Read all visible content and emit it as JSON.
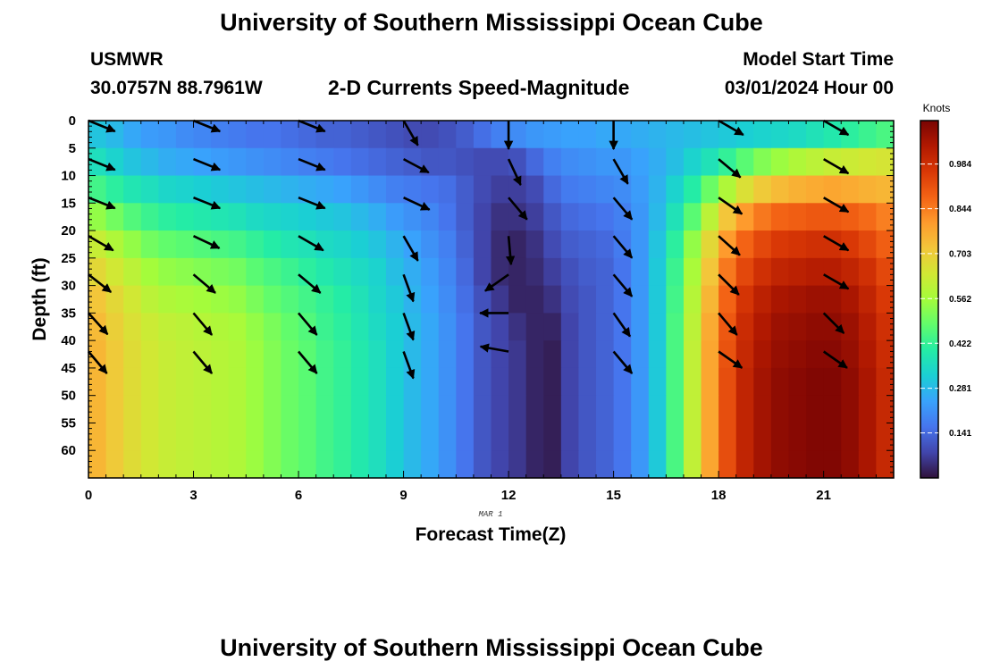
{
  "header": {
    "title_top": "University of Southern Mississippi Ocean Cube",
    "title_bottom": "University of Southern Mississippi Ocean Cube",
    "station": "USMWR",
    "location": "30.0757N  88.7961W",
    "product": "2-D Currents Speed-Magnitude",
    "model_start_label": "Model Start Time",
    "model_start_value": "03/01/2024 Hour 00"
  },
  "chart_data": {
    "type": "heatmap",
    "xlabel": "Forecast Time(Z)",
    "ylabel": "Depth (ft)",
    "date_label": "MAR 1",
    "colorbar_units": "Knots",
    "xlim": [
      0,
      23
    ],
    "ylim": [
      0,
      65
    ],
    "x_ticks": [
      0,
      3,
      6,
      9,
      12,
      15,
      18,
      21
    ],
    "y_ticks": [
      0,
      5,
      10,
      15,
      20,
      25,
      30,
      35,
      40,
      45,
      50,
      55,
      60
    ],
    "colorbar_ticks": [
      0.141,
      0.281,
      0.422,
      0.562,
      0.703,
      0.844,
      0.984
    ],
    "colorbar_range": [
      0.0,
      1.12
    ],
    "colormap": [
      "#30123b",
      "#4145ab",
      "#4675ed",
      "#39a2fc",
      "#1bcfd4",
      "#24eca6",
      "#61fc6c",
      "#a4fc3b",
      "#d1e834",
      "#f3c63a",
      "#fe9b2d",
      "#f36315",
      "#d93806",
      "#b11901",
      "#7a0403"
    ],
    "x": [
      0,
      0.5,
      1,
      1.5,
      2,
      2.5,
      3,
      3.5,
      4,
      4.5,
      5,
      5.5,
      6,
      6.5,
      7,
      7.5,
      8,
      8.5,
      9,
      9.5,
      10,
      10.5,
      11,
      11.5,
      12,
      12.5,
      13,
      13.5,
      14,
      14.5,
      15,
      15.5,
      16,
      16.5,
      17,
      17.5,
      18,
      18.5,
      19,
      19.5,
      20,
      20.5,
      21,
      21.5,
      22,
      22.5
    ],
    "y": [
      0,
      5,
      10,
      15,
      20,
      25,
      30,
      35,
      40,
      45,
      50,
      55,
      60
    ],
    "z": [
      [
        0.3,
        0.28,
        0.25,
        0.23,
        0.22,
        0.2,
        0.19,
        0.18,
        0.17,
        0.16,
        0.16,
        0.15,
        0.14,
        0.13,
        0.13,
        0.12,
        0.11,
        0.1,
        0.09,
        0.09,
        0.1,
        0.12,
        0.15,
        0.18,
        0.2,
        0.22,
        0.23,
        0.24,
        0.24,
        0.25,
        0.25,
        0.26,
        0.27,
        0.28,
        0.29,
        0.3,
        0.31,
        0.32,
        0.33,
        0.34,
        0.35,
        0.37,
        0.39,
        0.41,
        0.43,
        0.45
      ],
      [
        0.36,
        0.33,
        0.3,
        0.28,
        0.26,
        0.25,
        0.24,
        0.23,
        0.22,
        0.21,
        0.2,
        0.19,
        0.18,
        0.17,
        0.16,
        0.15,
        0.14,
        0.13,
        0.12,
        0.11,
        0.11,
        0.1,
        0.09,
        0.09,
        0.1,
        0.14,
        0.18,
        0.2,
        0.21,
        0.22,
        0.22,
        0.24,
        0.26,
        0.29,
        0.33,
        0.37,
        0.42,
        0.47,
        0.52,
        0.55,
        0.58,
        0.6,
        0.62,
        0.63,
        0.64,
        0.65
      ],
      [
        0.44,
        0.41,
        0.38,
        0.36,
        0.34,
        0.33,
        0.32,
        0.31,
        0.3,
        0.29,
        0.28,
        0.27,
        0.26,
        0.25,
        0.24,
        0.22,
        0.2,
        0.18,
        0.17,
        0.16,
        0.15,
        0.12,
        0.09,
        0.07,
        0.07,
        0.09,
        0.14,
        0.17,
        0.18,
        0.19,
        0.2,
        0.23,
        0.27,
        0.33,
        0.4,
        0.49,
        0.58,
        0.66,
        0.71,
        0.74,
        0.76,
        0.77,
        0.78,
        0.77,
        0.76,
        0.75
      ],
      [
        0.54,
        0.5,
        0.46,
        0.43,
        0.41,
        0.4,
        0.39,
        0.38,
        0.37,
        0.35,
        0.34,
        0.33,
        0.32,
        0.31,
        0.3,
        0.28,
        0.26,
        0.23,
        0.21,
        0.19,
        0.16,
        0.12,
        0.08,
        0.05,
        0.05,
        0.07,
        0.11,
        0.14,
        0.15,
        0.16,
        0.18,
        0.22,
        0.28,
        0.37,
        0.47,
        0.6,
        0.72,
        0.8,
        0.85,
        0.88,
        0.89,
        0.9,
        0.9,
        0.89,
        0.87,
        0.84
      ],
      [
        0.62,
        0.58,
        0.54,
        0.5,
        0.48,
        0.47,
        0.46,
        0.45,
        0.44,
        0.42,
        0.4,
        0.38,
        0.37,
        0.35,
        0.34,
        0.32,
        0.3,
        0.27,
        0.24,
        0.21,
        0.18,
        0.13,
        0.08,
        0.04,
        0.03,
        0.05,
        0.09,
        0.12,
        0.13,
        0.14,
        0.17,
        0.22,
        0.3,
        0.41,
        0.54,
        0.68,
        0.8,
        0.88,
        0.93,
        0.96,
        0.97,
        0.98,
        0.98,
        0.96,
        0.93,
        0.89
      ],
      [
        0.68,
        0.64,
        0.6,
        0.56,
        0.54,
        0.53,
        0.52,
        0.51,
        0.5,
        0.47,
        0.45,
        0.43,
        0.41,
        0.39,
        0.37,
        0.35,
        0.33,
        0.29,
        0.26,
        0.23,
        0.19,
        0.14,
        0.08,
        0.04,
        0.03,
        0.04,
        0.07,
        0.1,
        0.12,
        0.13,
        0.16,
        0.22,
        0.31,
        0.43,
        0.57,
        0.72,
        0.85,
        0.93,
        0.98,
        1.01,
        1.02,
        1.03,
        1.03,
        1.01,
        0.98,
        0.93
      ],
      [
        0.72,
        0.68,
        0.64,
        0.6,
        0.58,
        0.57,
        0.56,
        0.55,
        0.54,
        0.51,
        0.48,
        0.46,
        0.44,
        0.42,
        0.4,
        0.37,
        0.34,
        0.31,
        0.27,
        0.24,
        0.2,
        0.15,
        0.1,
        0.06,
        0.03,
        0.03,
        0.05,
        0.09,
        0.11,
        0.13,
        0.16,
        0.22,
        0.31,
        0.44,
        0.59,
        0.75,
        0.88,
        0.97,
        1.02,
        1.05,
        1.06,
        1.07,
        1.07,
        1.05,
        1.01,
        0.96
      ],
      [
        0.74,
        0.7,
        0.66,
        0.63,
        0.61,
        0.6,
        0.59,
        0.58,
        0.57,
        0.54,
        0.51,
        0.48,
        0.46,
        0.43,
        0.41,
        0.38,
        0.35,
        0.32,
        0.28,
        0.25,
        0.21,
        0.16,
        0.11,
        0.08,
        0.05,
        0.03,
        0.03,
        0.08,
        0.11,
        0.13,
        0.16,
        0.22,
        0.31,
        0.45,
        0.6,
        0.77,
        0.9,
        0.99,
        1.04,
        1.07,
        1.08,
        1.09,
        1.09,
        1.07,
        1.03,
        0.98
      ],
      [
        0.75,
        0.71,
        0.67,
        0.64,
        0.62,
        0.61,
        0.6,
        0.59,
        0.58,
        0.55,
        0.52,
        0.49,
        0.47,
        0.44,
        0.42,
        0.39,
        0.36,
        0.32,
        0.28,
        0.25,
        0.21,
        0.16,
        0.11,
        0.08,
        0.06,
        0.03,
        0.02,
        0.08,
        0.11,
        0.13,
        0.16,
        0.22,
        0.31,
        0.45,
        0.61,
        0.78,
        0.91,
        1.0,
        1.05,
        1.08,
        1.09,
        1.1,
        1.1,
        1.08,
        1.04,
        0.99
      ],
      [
        0.75,
        0.71,
        0.67,
        0.64,
        0.62,
        0.61,
        0.6,
        0.59,
        0.58,
        0.55,
        0.52,
        0.49,
        0.47,
        0.44,
        0.42,
        0.39,
        0.36,
        0.32,
        0.28,
        0.25,
        0.21,
        0.16,
        0.11,
        0.08,
        0.06,
        0.03,
        0.02,
        0.08,
        0.11,
        0.13,
        0.16,
        0.22,
        0.31,
        0.45,
        0.61,
        0.78,
        0.92,
        1.01,
        1.06,
        1.09,
        1.1,
        1.11,
        1.11,
        1.09,
        1.05,
        1.0
      ],
      [
        0.75,
        0.71,
        0.67,
        0.64,
        0.62,
        0.61,
        0.6,
        0.59,
        0.58,
        0.55,
        0.52,
        0.49,
        0.47,
        0.44,
        0.42,
        0.39,
        0.36,
        0.32,
        0.28,
        0.25,
        0.21,
        0.16,
        0.11,
        0.08,
        0.06,
        0.03,
        0.02,
        0.08,
        0.11,
        0.13,
        0.16,
        0.22,
        0.31,
        0.45,
        0.61,
        0.78,
        0.92,
        1.01,
        1.06,
        1.09,
        1.1,
        1.11,
        1.11,
        1.09,
        1.05,
        1.0
      ],
      [
        0.75,
        0.71,
        0.67,
        0.64,
        0.62,
        0.61,
        0.6,
        0.59,
        0.58,
        0.55,
        0.52,
        0.49,
        0.47,
        0.44,
        0.42,
        0.39,
        0.36,
        0.32,
        0.28,
        0.25,
        0.21,
        0.16,
        0.11,
        0.08,
        0.06,
        0.03,
        0.02,
        0.08,
        0.11,
        0.13,
        0.16,
        0.22,
        0.31,
        0.45,
        0.61,
        0.78,
        0.92,
        1.01,
        1.06,
        1.09,
        1.1,
        1.11,
        1.11,
        1.09,
        1.05,
        1.0
      ],
      [
        0.75,
        0.71,
        0.67,
        0.64,
        0.62,
        0.61,
        0.6,
        0.59,
        0.58,
        0.55,
        0.52,
        0.49,
        0.47,
        0.44,
        0.42,
        0.39,
        0.36,
        0.32,
        0.28,
        0.25,
        0.21,
        0.16,
        0.11,
        0.08,
        0.06,
        0.03,
        0.02,
        0.08,
        0.11,
        0.13,
        0.16,
        0.22,
        0.31,
        0.45,
        0.61,
        0.78,
        0.92,
        1.01,
        1.06,
        1.09,
        1.1,
        1.11,
        1.11,
        1.09,
        1.05,
        1.0
      ]
    ],
    "vectors": {
      "times": [
        0,
        3,
        6,
        9,
        12,
        15,
        18,
        21
      ],
      "depths": [
        0,
        7,
        14,
        21,
        28,
        35,
        42
      ],
      "directions_deg": [
        [
          112,
          112,
          112,
          150,
          180,
          180,
          120,
          120
        ],
        [
          112,
          112,
          112,
          118,
          155,
          150,
          130,
          120
        ],
        [
          112,
          112,
          112,
          115,
          140,
          140,
          125,
          120
        ],
        [
          120,
          115,
          120,
          150,
          175,
          140,
          132,
          120
        ],
        [
          128,
          130,
          130,
          160,
          235,
          140,
          135,
          120
        ],
        [
          138,
          140,
          140,
          160,
          270,
          145,
          140,
          135
        ],
        [
          140,
          140,
          140,
          160,
          280,
          140,
          125,
          125
        ]
      ]
    }
  }
}
